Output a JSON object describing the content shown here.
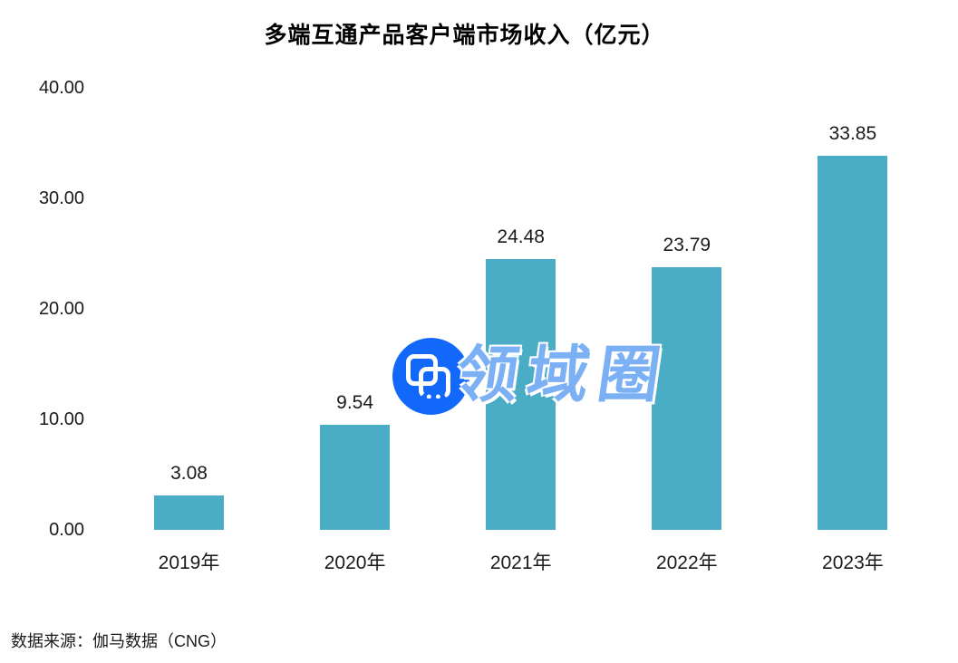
{
  "page": {
    "background": "#ffffff"
  },
  "chart_data": {
    "type": "bar",
    "title": "多端互通产品客户端市场收入（亿元）",
    "categories": [
      "2019年",
      "2020年",
      "2021年",
      "2022年",
      "2023年"
    ],
    "values": [
      3.08,
      9.54,
      24.48,
      23.79,
      33.85
    ],
    "data_labels": [
      "3.08",
      "9.54",
      "24.48",
      "23.79",
      "33.85"
    ],
    "xlabel": "",
    "ylabel": "",
    "ylim": [
      0,
      40
    ],
    "yticks": [
      0,
      10,
      20,
      30,
      40
    ],
    "ytick_labels": [
      "0.00",
      "10.00",
      "20.00",
      "30.00",
      "40.00"
    ],
    "grid": false,
    "legend": false,
    "bar_color": "#4BACC6",
    "label_color": "#1a1a1a",
    "title_color": "#000000"
  },
  "source_note": "数据来源：伽马数据（CNG）",
  "watermark": {
    "text": "领域圈",
    "text_color": "#7BB0F4",
    "logo": "overlapping-squares-icon",
    "logo_color": "#1268FB"
  }
}
